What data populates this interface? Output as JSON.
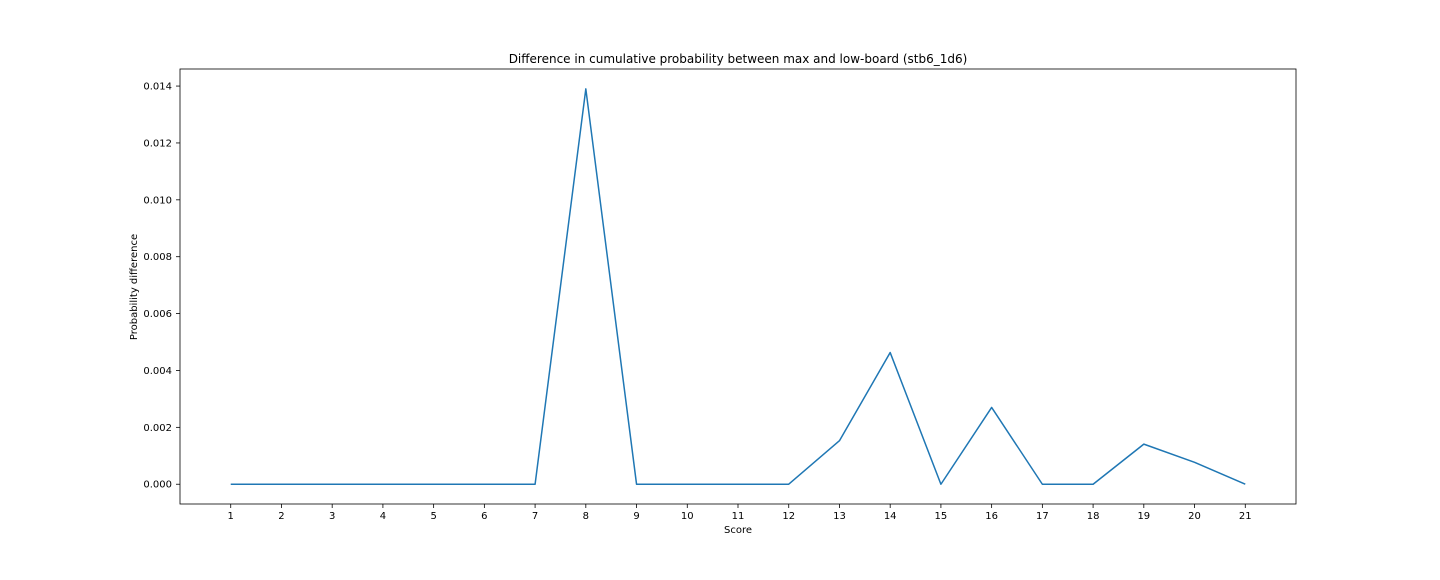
{
  "chart_data": {
    "type": "line",
    "title": "Difference in cumulative probability between max and low-board (stb6_1d6)",
    "xlabel": "Score",
    "ylabel": "Probability difference",
    "x": [
      1,
      2,
      3,
      4,
      5,
      6,
      7,
      8,
      9,
      10,
      11,
      12,
      13,
      14,
      15,
      16,
      17,
      18,
      19,
      20,
      21
    ],
    "series": [
      {
        "values": [
          0,
          0,
          0,
          0,
          0,
          0,
          0,
          0.0139,
          0,
          0,
          0,
          0,
          0.00153,
          0.00463,
          0,
          0.0027,
          0,
          0,
          0.00141,
          0.00077,
          0
        ],
        "color": "#1f77b4"
      }
    ],
    "xlim": [
      0,
      22
    ],
    "ylim": [
      -0.000695,
      0.0146
    ],
    "xticks": [
      1,
      2,
      3,
      4,
      5,
      6,
      7,
      8,
      9,
      10,
      11,
      12,
      13,
      14,
      15,
      16,
      17,
      18,
      19,
      20,
      21
    ],
    "yticks": [
      0,
      0.002,
      0.004,
      0.006,
      0.008,
      0.01,
      0.012,
      0.014
    ],
    "ytick_labels": [
      "0.000",
      "0.002",
      "0.004",
      "0.006",
      "0.008",
      "0.010",
      "0.012",
      "0.014"
    ],
    "grid": false,
    "legend": false
  }
}
